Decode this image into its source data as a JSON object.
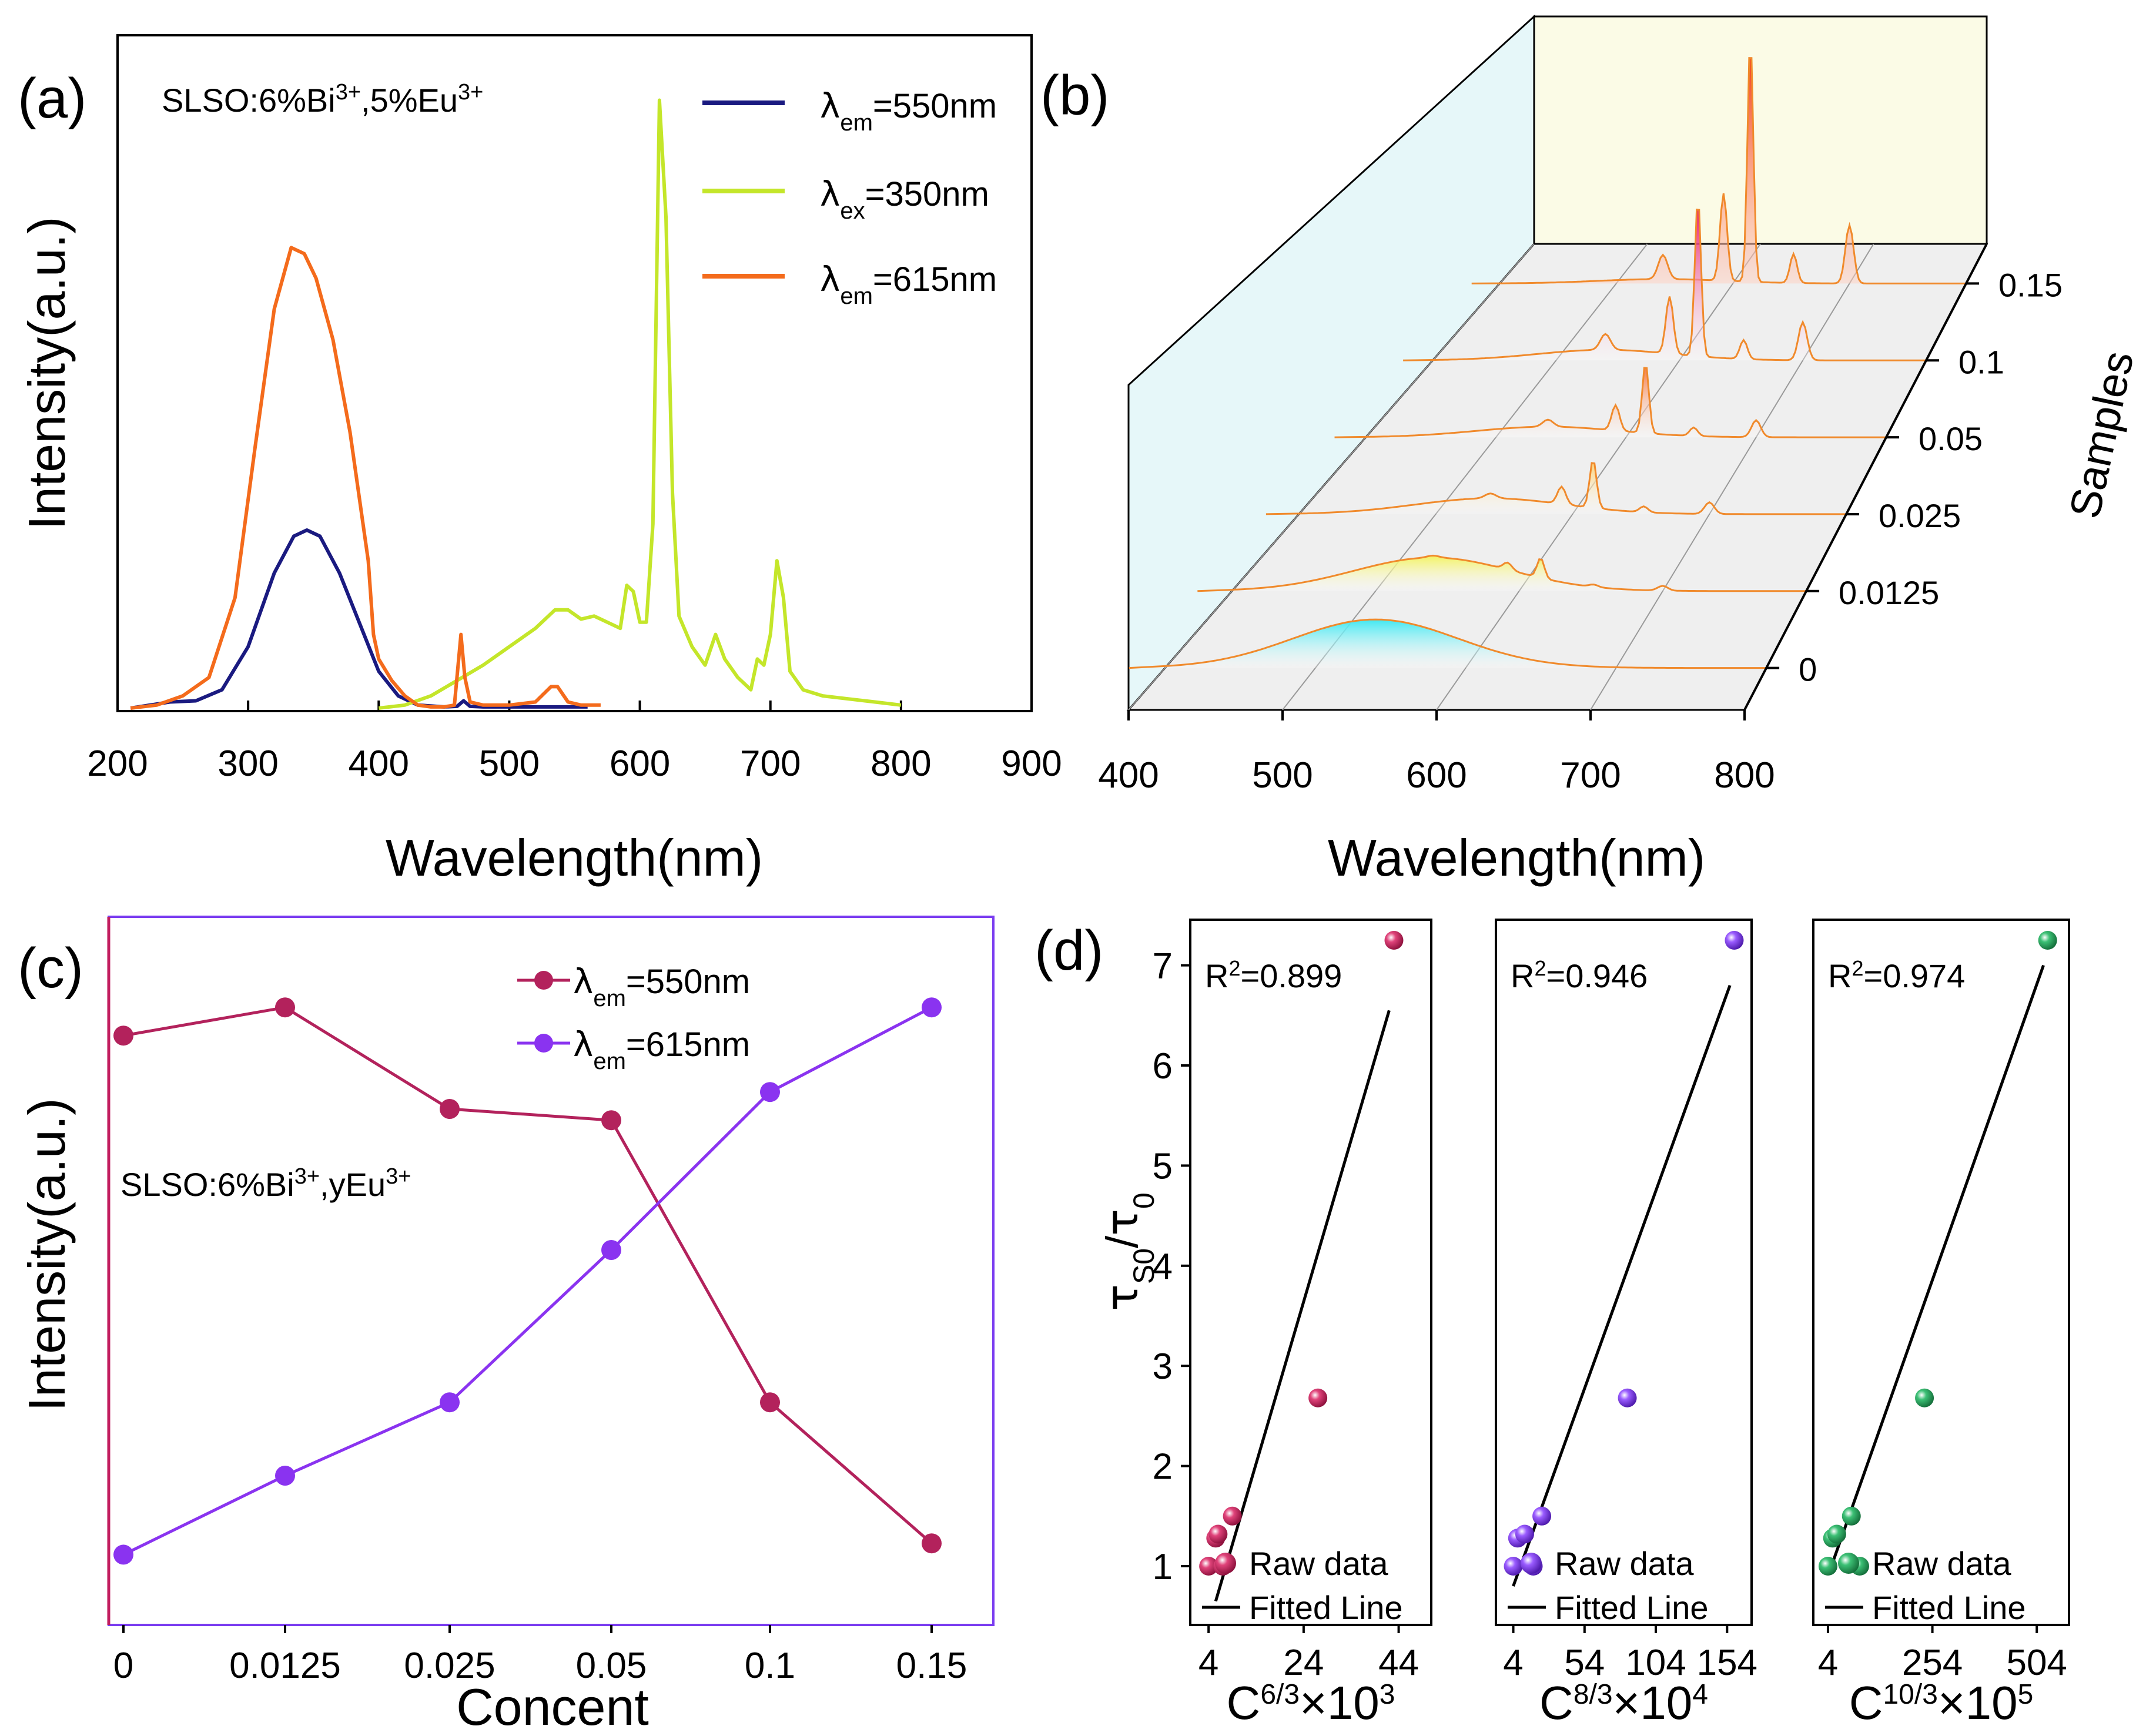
{
  "chart_data": [
    {
      "panel": "(a)",
      "type": "line",
      "title": "",
      "annotation": "SLSO:6%Bi3+,5%Eu3+",
      "xlabel": "Wavelength(nm)",
      "ylabel": "Intensity(a.u.)",
      "xlim": [
        200,
        900
      ],
      "ylim": [
        0,
        1.0
      ],
      "xticks": [
        "200",
        "300",
        "400",
        "500",
        "600",
        "700",
        "800",
        "900"
      ],
      "legend_position": "top-right",
      "series": [
        {
          "name": "λem=550nm",
          "color": "#1a1a80",
          "x": [
            210,
            240,
            260,
            280,
            300,
            320,
            335,
            345,
            355,
            370,
            385,
            400,
            415,
            430,
            450,
            460,
            465,
            470,
            480,
            500,
            560
          ],
          "y": [
            0,
            0.01,
            0.012,
            0.03,
            0.1,
            0.22,
            0.28,
            0.29,
            0.28,
            0.22,
            0.14,
            0.06,
            0.02,
            0.005,
            0.002,
            0.003,
            0.012,
            0.003,
            0.002,
            0.002,
            0.002
          ]
        },
        {
          "name": "λex=350nm",
          "color": "#c4e62a",
          "x": [
            400,
            420,
            440,
            460,
            480,
            500,
            520,
            535,
            545,
            555,
            565,
            575,
            585,
            590,
            595,
            600,
            605,
            610,
            615,
            620,
            625,
            630,
            640,
            650,
            658,
            665,
            675,
            685,
            690,
            695,
            700,
            705,
            710,
            715,
            725,
            740,
            760,
            780,
            800
          ],
          "y": [
            0,
            0.005,
            0.02,
            0.045,
            0.07,
            0.1,
            0.13,
            0.16,
            0.16,
            0.145,
            0.15,
            0.14,
            0.13,
            0.2,
            0.19,
            0.14,
            0.14,
            0.3,
            0.99,
            0.8,
            0.35,
            0.15,
            0.1,
            0.07,
            0.12,
            0.08,
            0.05,
            0.03,
            0.08,
            0.07,
            0.12,
            0.24,
            0.18,
            0.06,
            0.03,
            0.02,
            0.015,
            0.01,
            0.005
          ]
        },
        {
          "name": "λem=615nm",
          "color": "#f46b1c",
          "x": [
            210,
            230,
            250,
            270,
            290,
            305,
            320,
            333,
            343,
            352,
            365,
            378,
            388,
            392,
            396,
            400,
            410,
            420,
            430,
            440,
            450,
            458,
            463,
            466,
            470,
            480,
            500,
            520,
            532,
            537,
            545,
            555,
            570
          ],
          "y": [
            0,
            0.005,
            0.02,
            0.05,
            0.18,
            0.42,
            0.65,
            0.75,
            0.74,
            0.7,
            0.6,
            0.45,
            0.3,
            0.24,
            0.12,
            0.08,
            0.045,
            0.02,
            0.005,
            0.002,
            0.002,
            0.005,
            0.12,
            0.05,
            0.01,
            0.005,
            0.005,
            0.01,
            0.035,
            0.035,
            0.01,
            0.005,
            0.005
          ]
        }
      ]
    },
    {
      "panel": "(b)",
      "type": "area",
      "title": "",
      "xlabel": "Wavelength(nm)",
      "zlabel": "Samples",
      "xlim": [
        400,
        800
      ],
      "xticks": [
        "400",
        "500",
        "600",
        "700",
        "800"
      ],
      "categories": [
        "0",
        "0.0125",
        "0.025",
        "0.05",
        "0.1",
        "0.15"
      ],
      "series": [
        {
          "name": "0",
          "fill": "#3fe8f2"
        },
        {
          "name": "0.0125",
          "fill": "#f3f25f"
        },
        {
          "name": "0.025",
          "fill": "#fbd37b"
        },
        {
          "name": "0.05",
          "fill": "#f57b47"
        },
        {
          "name": "0.1",
          "fill": "#e8176e"
        },
        {
          "name": "0.15",
          "fill": "#f4411c"
        }
      ]
    },
    {
      "panel": "(c)",
      "type": "line",
      "title": "",
      "annotation": "SLSO:6%Bi3+,yEu3+",
      "xlabel": "Concent",
      "ylabel": "Intensity(a.u.)",
      "categories": [
        "0",
        "0.0125",
        "0.025",
        "0.05",
        "0.1",
        "0.15"
      ],
      "legend_position": "top-right",
      "series": [
        {
          "name": "λem=550nm",
          "color": "#b3225c",
          "values": [
            0.93,
            0.98,
            0.8,
            0.78,
            0.28,
            0.03
          ]
        },
        {
          "name": "λem=615nm",
          "color": "#8a33f0",
          "values": [
            0.01,
            0.15,
            0.28,
            0.55,
            0.83,
            0.98
          ]
        }
      ]
    },
    {
      "panel": "(d)",
      "type": "scatter",
      "ylabel": "τS0/τ0",
      "ylim": [
        0.6,
        7.5
      ],
      "yticks": [
        "1",
        "2",
        "3",
        "4",
        "5",
        "6",
        "7"
      ],
      "legend": [
        "Raw data",
        "Fitted Line"
      ],
      "subplots": [
        {
          "r2": "R2=0.899",
          "xlabel_base": "C",
          "xlabel_exp": "6/3",
          "xlabel_factor": "×10",
          "xlabel_pow": "3",
          "xlim": [
            2,
            49
          ],
          "xticks": [
            "4",
            "24",
            "44"
          ],
          "color": "#cc2255",
          "x": [
            4,
            5.5,
            6,
            7,
            9,
            27,
            43
          ],
          "y": [
            1.0,
            1.28,
            1.32,
            1.0,
            1.5,
            2.68,
            7.25
          ],
          "fit": {
            "x": [
              5.5,
              42
            ],
            "y": [
              0.65,
              6.55
            ]
          }
        },
        {
          "r2": "R2=0.946",
          "xlabel_base": "C",
          "xlabel_exp": "8/3",
          "xlabel_factor": "×10",
          "xlabel_pow": "4",
          "xlim": [
            -2,
            165
          ],
          "xticks": [
            "4",
            "54",
            "104",
            "154"
          ],
          "color": "#8844ee",
          "x": [
            4,
            7,
            12,
            18,
            24,
            84,
            159
          ],
          "y": [
            1.0,
            1.28,
            1.32,
            1.0,
            1.5,
            2.68,
            7.25
          ],
          "fit": {
            "x": [
              4,
              156
            ],
            "y": [
              0.8,
              6.8
            ]
          }
        },
        {
          "r2": "R2=0.974",
          "xlabel_base": "C",
          "xlabel_exp": "10/3",
          "xlabel_factor": "×10",
          "xlabel_pow": "5",
          "xlim": [
            -10,
            560
          ],
          "xticks": [
            "4",
            "254",
            "504"
          ],
          "color": "#2a9f5a",
          "x": [
            4,
            15,
            25,
            60,
            80,
            235,
            530
          ],
          "y": [
            1.0,
            1.28,
            1.32,
            1.5,
            1.0,
            2.68,
            7.25
          ],
          "fit": {
            "x": [
              8,
              520
            ],
            "y": [
              0.95,
              7.0
            ]
          }
        }
      ]
    }
  ],
  "labels": {
    "panel_a": "(a)",
    "panel_b": "(b)",
    "panel_c": "(c)",
    "panel_d": "(d)",
    "raw": "Raw data",
    "fit": "Fitted Line"
  }
}
